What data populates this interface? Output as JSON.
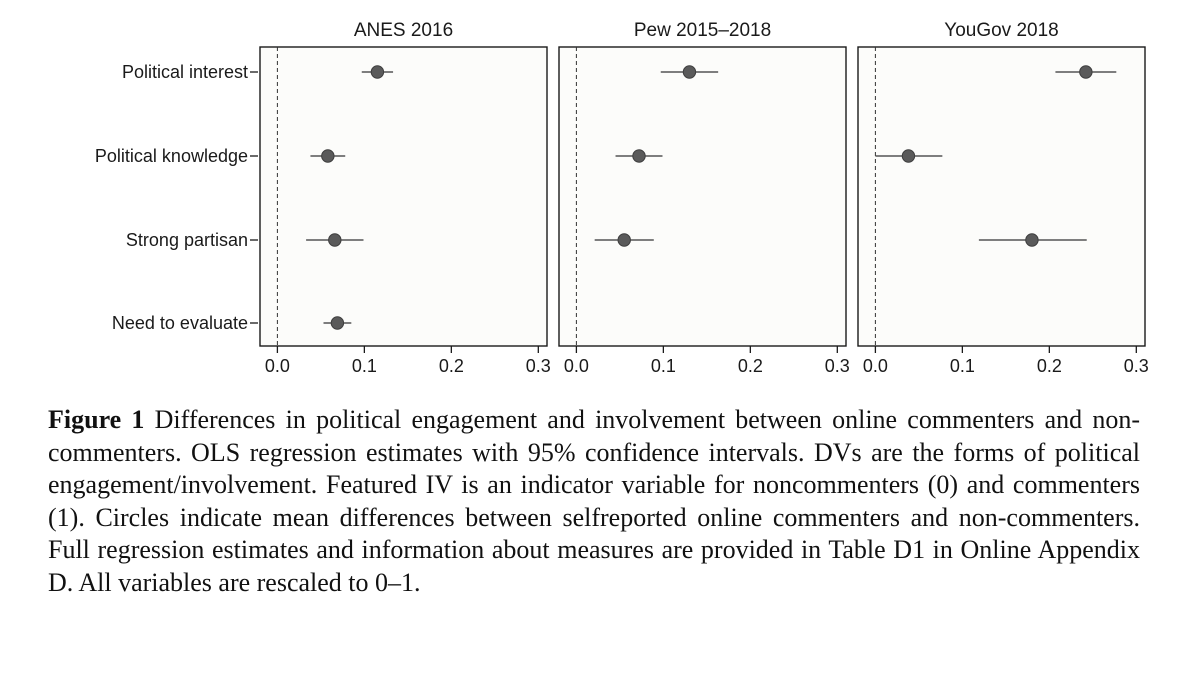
{
  "chart_data": {
    "type": "scatter",
    "subtype": "coefficient-plot",
    "reference_line": 0.0,
    "xlim": [
      -0.02,
      0.31
    ],
    "x_ticks": [
      0.0,
      0.1,
      0.2,
      0.3
    ],
    "x_tick_labels": [
      "0.0",
      "0.1",
      "0.2",
      "0.3"
    ],
    "rows": [
      "Political interest",
      "Political knowledge",
      "Strong partisan",
      "Need to evaluate"
    ],
    "panels": [
      {
        "title": "ANES 2016",
        "estimates": [
          {
            "row": "Political interest",
            "value": 0.115,
            "ci_low": 0.097,
            "ci_high": 0.133
          },
          {
            "row": "Political knowledge",
            "value": 0.058,
            "ci_low": 0.038,
            "ci_high": 0.078
          },
          {
            "row": "Strong partisan",
            "value": 0.066,
            "ci_low": 0.033,
            "ci_high": 0.099
          },
          {
            "row": "Need to evaluate",
            "value": 0.069,
            "ci_low": 0.053,
            "ci_high": 0.085
          }
        ]
      },
      {
        "title": "Pew 2015–2018",
        "estimates": [
          {
            "row": "Political interest",
            "value": 0.13,
            "ci_low": 0.097,
            "ci_high": 0.163
          },
          {
            "row": "Political knowledge",
            "value": 0.072,
            "ci_low": 0.045,
            "ci_high": 0.099
          },
          {
            "row": "Strong partisan",
            "value": 0.055,
            "ci_low": 0.021,
            "ci_high": 0.089
          }
        ]
      },
      {
        "title": "YouGov 2018",
        "estimates": [
          {
            "row": "Political interest",
            "value": 0.242,
            "ci_low": 0.207,
            "ci_high": 0.277
          },
          {
            "row": "Political knowledge",
            "value": 0.038,
            "ci_low": 0.0,
            "ci_high": 0.077
          },
          {
            "row": "Strong partisan",
            "value": 0.18,
            "ci_low": 0.119,
            "ci_high": 0.243
          }
        ]
      }
    ],
    "colors": {
      "point": "#5a5a5a",
      "ci_line": "#555555",
      "frame": "#1a1a1a",
      "panel_bg": "#fcfcfa",
      "ref_line": "#333333"
    }
  },
  "caption": {
    "label": "Figure 1",
    "text": "Differences in political engagement and involvement between online commenters and non-commenters. OLS regression estimates with 95% confidence intervals. DVs are the forms of political engagement/involvement. Featured IV is an indicator variable for non­commenters (0) and commenters (1). Circles indicate mean differences between self­reported online commenters and non-commenters. Full regression estimates and informa­tion about measures are provided in Table D1 in Online Appendix D. All variables are rescaled to 0–1."
  }
}
